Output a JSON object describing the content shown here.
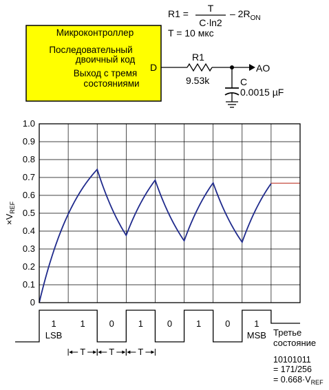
{
  "mcu_box": {
    "line1": "Микроконтроллер",
    "line2": "Последовательный",
    "line3": "двоичный код",
    "line4": "Выход с тремя",
    "line5": "состояниями",
    "pin": "D",
    "fill_color": "#ffff00"
  },
  "formula": {
    "lhs": "R1 =",
    "numerator": "T",
    "denominator": "C·ln2",
    "rhs_main": "– 2R",
    "rhs_sub": "ON",
    "period": "T = 10 мкс"
  },
  "circuit": {
    "resistor_name": "R1",
    "resistor_value": "9.53k",
    "capacitor_name": "C",
    "capacitor_value": "0.0015 µF",
    "output_label": "AO"
  },
  "chart_data": {
    "type": "line",
    "ylabel_main": "×V",
    "ylabel_sub": "REF",
    "ylim": [
      0,
      1.0
    ],
    "yticks": [
      "0",
      "0.1",
      "0.2",
      "0.3",
      "0.4",
      "0.5",
      "0.6",
      "0.7",
      "0.8",
      "0.9",
      "1.0"
    ],
    "grid": true,
    "x_periods": 9,
    "curve_color": "#1f2a8c",
    "hold_color": "#c0392b",
    "peaks": [
      {
        "t": 0,
        "v": 0.0
      },
      {
        "t": 2,
        "v": 0.745
      },
      {
        "t": 3,
        "v": 0.375
      },
      {
        "t": 4,
        "v": 0.685
      },
      {
        "t": 5,
        "v": 0.345
      },
      {
        "t": 6,
        "v": 0.67
      },
      {
        "t": 7,
        "v": 0.335
      },
      {
        "t": 8,
        "v": 0.668
      }
    ],
    "hold_value": 0.668
  },
  "timing": {
    "bits": [
      "1",
      "1",
      "0",
      "1",
      "0",
      "1",
      "0",
      "1"
    ],
    "lsb_label": "LSB",
    "msb_label": "MSB",
    "period_label": "T",
    "third_state_line1": "Третье",
    "third_state_line2": "состояние"
  },
  "result": {
    "line1": "10101011",
    "line2": "= 171/256",
    "line3_main": "= 0.668·V",
    "line3_sub": "REF"
  }
}
